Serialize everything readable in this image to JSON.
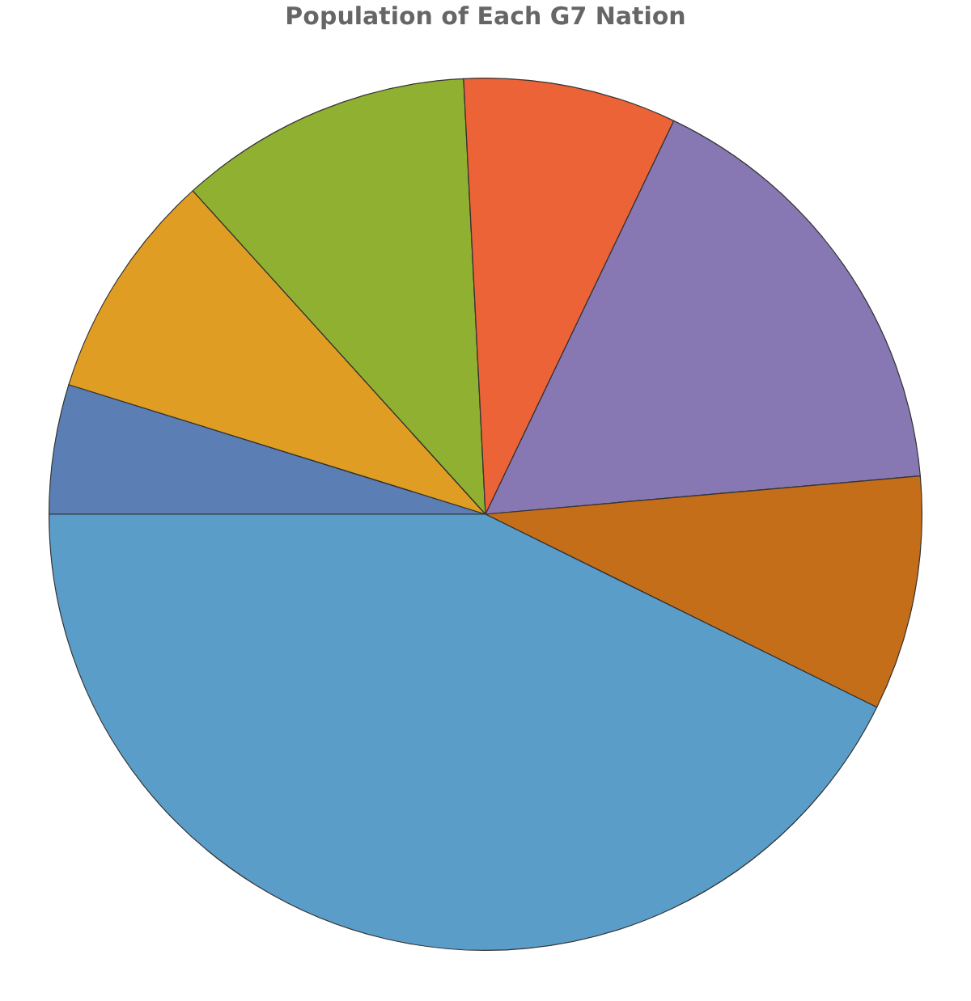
{
  "chart_data": {
    "type": "pie",
    "title": "Population of Each G7 Nation",
    "categories": [
      null,
      null,
      null,
      null,
      null,
      null,
      null
    ],
    "values": [
      4.8,
      8.5,
      10.9,
      7.9,
      16.5,
      8.7,
      42.7
    ],
    "colors": [
      "#5b7fb5",
      "#e09d24",
      "#8fb031",
      "#ec6337",
      "#8777b3",
      "#c46e19",
      "#5b9dc9"
    ]
  }
}
